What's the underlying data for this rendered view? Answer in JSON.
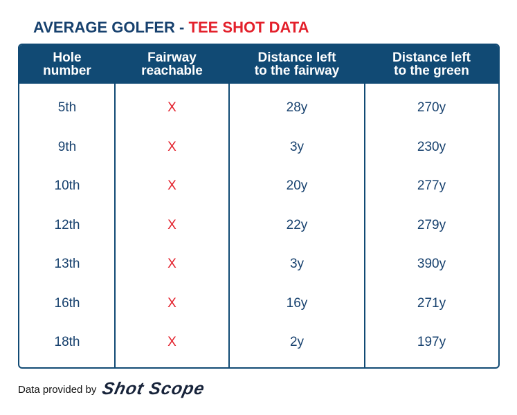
{
  "title": {
    "part1": "AVERAGE GOLFER - ",
    "part2": "TEE SHOT DATA"
  },
  "table": {
    "header": [
      [
        "Hole",
        "number"
      ],
      [
        "Fairway",
        "reachable"
      ],
      [
        "Distance left",
        "to the fairway"
      ],
      [
        "Distance left",
        "to the green"
      ]
    ],
    "rows": [
      [
        "5th",
        "X",
        "28y",
        "270y"
      ],
      [
        "9th",
        "X",
        "3y",
        "230y"
      ],
      [
        "10th",
        "X",
        "20y",
        "277y"
      ],
      [
        "12th",
        "X",
        "22y",
        "279y"
      ],
      [
        "13th",
        "X",
        "3y",
        "390y"
      ],
      [
        "16th",
        "X",
        "16y",
        "271y"
      ],
      [
        "18th",
        "X",
        "2y",
        "197y"
      ]
    ]
  },
  "footer": {
    "text": "Data provided by",
    "logo": "Shot Scope"
  }
}
